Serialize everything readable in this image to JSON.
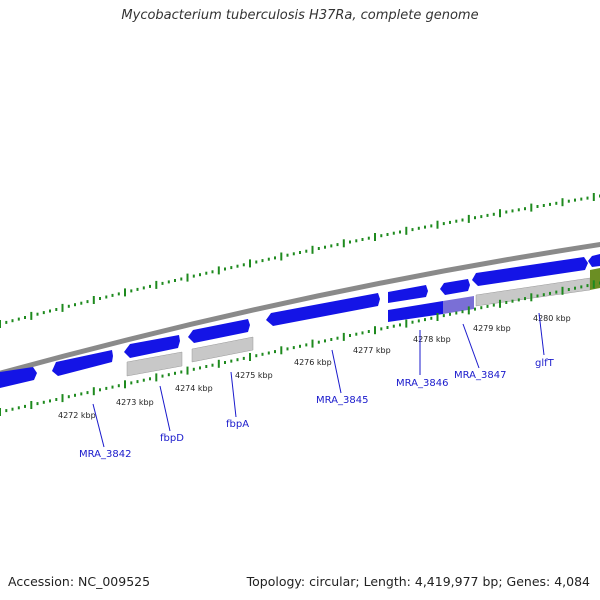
{
  "title": "Mycobacterium tuberculosis H37Ra, complete genome",
  "footer": {
    "accession": "Accession: NC_009525",
    "summary": "Topology: circular; Length: 4,419,977 bp; Genes: 4,084"
  },
  "colors": {
    "gene": "#1414e6",
    "pseudo": "#c8c8c8",
    "highlight": "#7a6fd6",
    "other": "#6b8e23",
    "tick": "#1e8a1e",
    "backbone": "#888888",
    "label": "#1a1acc"
  },
  "kbp_labels": [
    "4272 kbp",
    "4273 kbp",
    "4274 kbp",
    "4275 kbp",
    "4276 kbp",
    "4277 kbp",
    "4278 kbp",
    "4279 kbp",
    "4280 kbp"
  ],
  "gene_labels": [
    "MRA_3842",
    "fbpD",
    "fbpA",
    "MRA_3845",
    "MRA_3846",
    "MRA_3847",
    "glfT"
  ]
}
